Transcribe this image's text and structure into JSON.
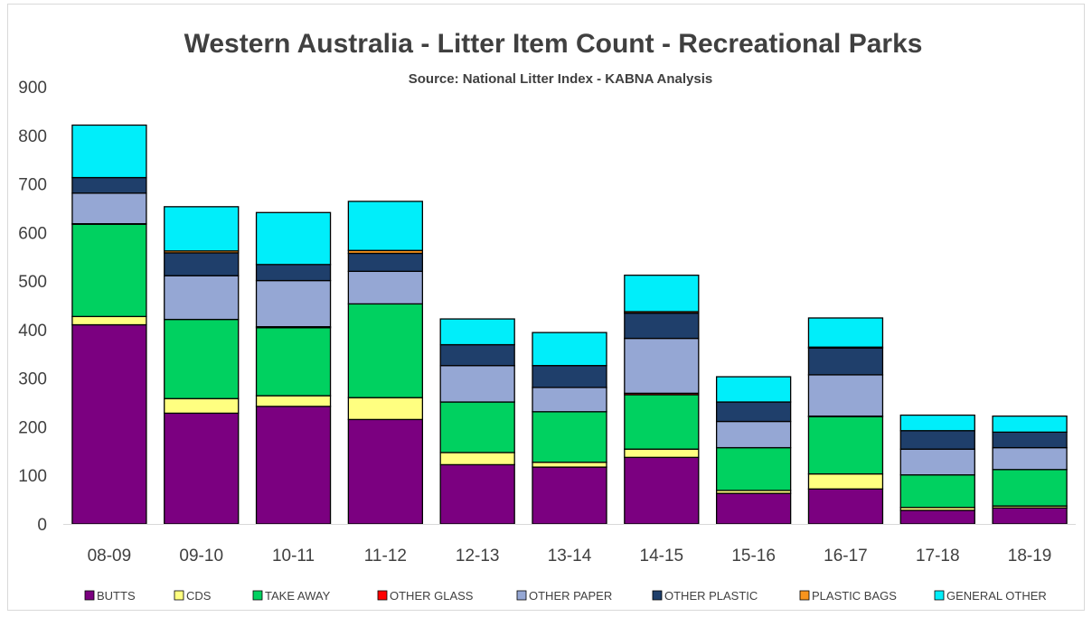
{
  "chart_data": {
    "type": "bar",
    "stacked": true,
    "title": "Western Australia - Litter Item Count - Recreational Parks",
    "subtitle": "Source: National Litter Index - KABNA Analysis",
    "xlabel": "",
    "ylabel": "",
    "ylim": [
      0,
      900
    ],
    "yticks": [
      0,
      100,
      200,
      300,
      400,
      500,
      600,
      700,
      800,
      900
    ],
    "grid": false,
    "legend_position": "bottom",
    "categories": [
      "08-09",
      "09-10",
      "10-11",
      "11-12",
      "12-13",
      "13-14",
      "14-15",
      "15-16",
      "16-17",
      "17-18",
      "18-19"
    ],
    "series": [
      {
        "name": "BUTTS",
        "color": "#7B0080",
        "values": [
          410,
          228,
          242,
          215,
          122,
          117,
          137,
          63,
          72,
          28,
          33
        ]
      },
      {
        "name": "CDS",
        "color": "#FFFF80",
        "values": [
          17,
          30,
          22,
          45,
          25,
          10,
          17,
          6,
          31,
          6,
          4
        ]
      },
      {
        "name": "TAKE AWAY",
        "color": "#00D160",
        "values": [
          190,
          163,
          140,
          193,
          104,
          104,
          112,
          88,
          118,
          67,
          75
        ]
      },
      {
        "name": "OTHER GLASS",
        "color": "#FF0000",
        "values": [
          1,
          0,
          2,
          0,
          0,
          0,
          3,
          0,
          1,
          0,
          0
        ]
      },
      {
        "name": "OTHER PAPER",
        "color": "#95A7D4",
        "values": [
          63,
          90,
          95,
          67,
          75,
          50,
          113,
          54,
          85,
          53,
          45
        ]
      },
      {
        "name": "OTHER PLASTIC",
        "color": "#1F3F6B",
        "values": [
          32,
          47,
          33,
          37,
          43,
          45,
          52,
          40,
          55,
          38,
          32
        ]
      },
      {
        "name": "PLASTIC BAGS",
        "color": "#F7941D",
        "values": [
          0,
          4,
          0,
          6,
          0,
          0,
          3,
          0,
          2,
          0,
          0
        ]
      },
      {
        "name": "GENERAL OTHER",
        "color": "#00EEFA",
        "values": [
          108,
          91,
          107,
          101,
          53,
          68,
          75,
          52,
          60,
          32,
          33
        ]
      }
    ]
  }
}
